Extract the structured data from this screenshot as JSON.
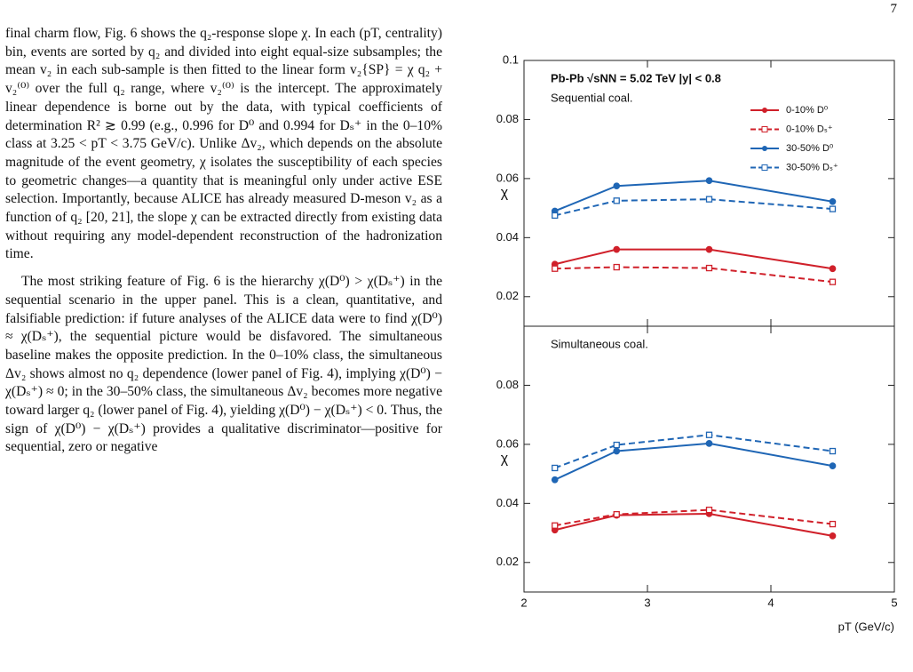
{
  "page_number": "7",
  "text": {
    "paragraphs": [
      "final charm flow, Fig. 6 shows the q₂-response slope χ. In each (pT, centrality) bin, events are sorted by q₂ and divided into eight equal-size subsamples; the mean v₂ in each sub-sample is then fitted to the linear form v₂{SP} = χ q₂ + v₂⁽⁰⁾ over the full q₂ range, where v₂⁽⁰⁾ is the intercept. The approximately linear dependence is borne out by the data, with typical coefficients of determination R² ≳ 0.99 (e.g., 0.996 for D⁰ and 0.994 for Dₛ⁺ in the 0–10% class at 3.25 < pT < 3.75 GeV/c). Unlike Δv₂, which depends on the absolute magnitude of the event geometry, χ isolates the susceptibility of each species to geometric changes—a quantity that is meaningful only under active ESE selection. Importantly, because ALICE has already measured D-meson v₂ as a function of q₂ [20, 21], the slope χ can be extracted directly from existing data without requiring any model-dependent reconstruction of the hadronization time.",
      "The most striking feature of Fig. 6 is the hierarchy χ(D⁰) > χ(Dₛ⁺) in the sequential scenario in the upper panel. This is a clean, quantitative, and falsifiable prediction: if future analyses of the ALICE data were to find χ(D⁰) ≈ χ(Dₛ⁺), the sequential picture would be disfavored. The simultaneous baseline makes the opposite prediction. In the 0–10% class, the simultaneous Δv₂ shows almost no q₂ dependence (lower panel of Fig. 4), implying χ(D⁰) − χ(Dₛ⁺) ≈ 0; in the 30–50% class, the simultaneous Δv₂ becomes more negative toward larger q₂ (lower panel of Fig. 4), yielding χ(D⁰) − χ(Dₛ⁺) < 0. Thus, the sign of χ(D⁰) − χ(Dₛ⁺) provides a qualitative discriminator—positive for sequential, zero or negative"
    ]
  },
  "chart_data": [
    {
      "type": "line",
      "annotation": "Pb-Pb √sNN = 5.02 TeV   |y| < 0.8",
      "subtitle": "Sequential coal.",
      "ylabel": "χ",
      "x": [
        2.25,
        2.75,
        3.5,
        4.5
      ],
      "xlim": [
        2,
        5
      ],
      "ylim": [
        0.01,
        0.1
      ],
      "yticks": [
        0.02,
        0.04,
        0.06,
        0.08,
        0.1
      ],
      "legend": "upper right",
      "series": [
        {
          "name": "0-10% D⁰",
          "color": "#d0202a",
          "dashed": false,
          "values": [
            0.031,
            0.036,
            0.036,
            0.0295
          ]
        },
        {
          "name": "0-10% Dₛ⁺",
          "color": "#d0202a",
          "dashed": true,
          "values": [
            0.0295,
            0.03,
            0.0297,
            0.025
          ]
        },
        {
          "name": "30-50% D⁰",
          "color": "#1f66b5",
          "dashed": false,
          "values": [
            0.049,
            0.0575,
            0.0593,
            0.0522
          ]
        },
        {
          "name": "30-50% Dₛ⁺",
          "color": "#1f66b5",
          "dashed": true,
          "values": [
            0.0475,
            0.0525,
            0.053,
            0.0497
          ]
        }
      ]
    },
    {
      "type": "line",
      "subtitle": "Simultaneous coal.",
      "ylabel": "χ",
      "xlabel": "pT (GeV/c)",
      "x": [
        2.25,
        2.75,
        3.5,
        4.5
      ],
      "xlim": [
        2,
        5
      ],
      "xticks": [
        2,
        3,
        4,
        5
      ],
      "ylim": [
        0.01,
        0.1
      ],
      "yticks": [
        0.02,
        0.04,
        0.06,
        0.08
      ],
      "series": [
        {
          "color": "#d0202a",
          "dashed": false,
          "values": [
            0.031,
            0.036,
            0.0365,
            0.029
          ]
        },
        {
          "color": "#d0202a",
          "dashed": true,
          "values": [
            0.0325,
            0.0363,
            0.0378,
            0.033
          ]
        },
        {
          "color": "#1f66b5",
          "dashed": false,
          "values": [
            0.048,
            0.0577,
            0.0603,
            0.0527
          ]
        },
        {
          "color": "#1f66b5",
          "dashed": true,
          "values": [
            0.052,
            0.0598,
            0.0632,
            0.0577
          ]
        }
      ]
    }
  ]
}
